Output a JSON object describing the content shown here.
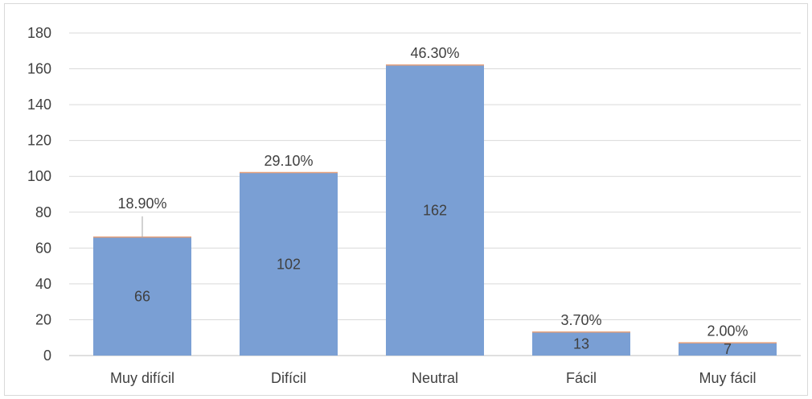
{
  "chart_data": {
    "type": "bar",
    "categories": [
      "Muy difícil",
      "Difícil",
      "Neutral",
      "Fácil",
      "Muy fácil"
    ],
    "values": [
      66,
      102,
      162,
      13,
      7
    ],
    "percent_labels": [
      "18.90%",
      "29.10%",
      "46.30%",
      "3.70%",
      "2.00%"
    ],
    "value_labels": [
      "66",
      "102",
      "162",
      "13",
      "7"
    ],
    "y_ticks": [
      "0",
      "20",
      "40",
      "60",
      "80",
      "100",
      "120",
      "140",
      "160",
      "180"
    ],
    "ylim": [
      0,
      180
    ],
    "grid": true,
    "legend": "none",
    "title": "",
    "xlabel": "",
    "ylabel": "",
    "colors": {
      "bar": "#7a9fd4",
      "bar_top": "#e6a07a",
      "grid": "#d9d9d9",
      "axis": "#bfbfbf",
      "leader": "#a6a6a6"
    }
  }
}
